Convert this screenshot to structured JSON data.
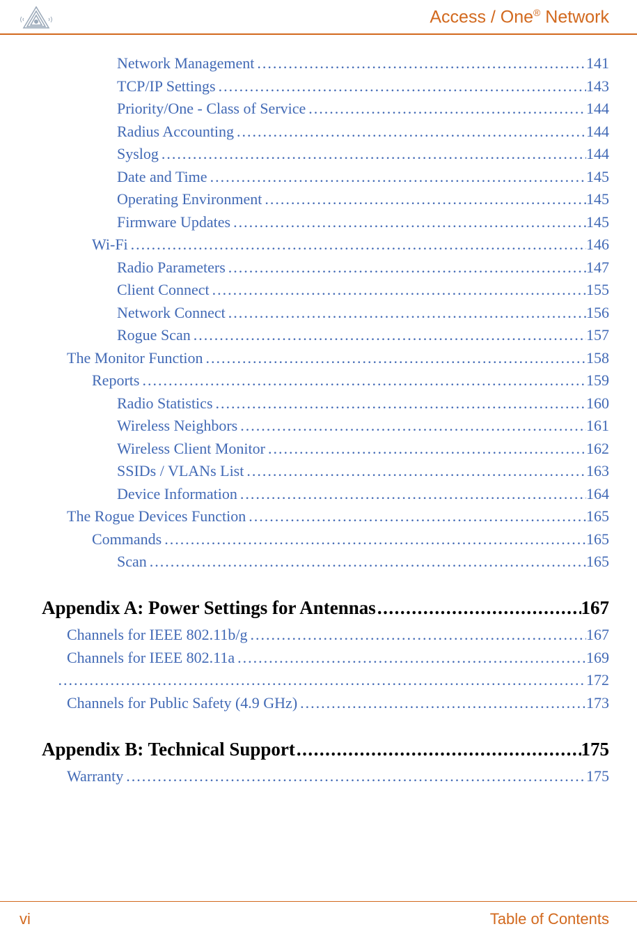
{
  "header": {
    "title_prefix": "Access / One",
    "title_reg": "®",
    "title_suffix": " Network"
  },
  "toc": {
    "entries": [
      {
        "indent": 3,
        "text": "Network Management ",
        "page": "141"
      },
      {
        "indent": 3,
        "text": "TCP/IP Settings ",
        "page": "143"
      },
      {
        "indent": 3,
        "text": "Priority/One - Class of Service ",
        "page": "144"
      },
      {
        "indent": 3,
        "text": "Radius Accounting ",
        "page": "144"
      },
      {
        "indent": 3,
        "text": "Syslog ",
        "page": "144"
      },
      {
        "indent": 3,
        "text": "Date and Time ",
        "page": "145"
      },
      {
        "indent": 3,
        "text": "Operating Environment ",
        "page": "145"
      },
      {
        "indent": 3,
        "text": "Firmware Updates ",
        "page": "145"
      },
      {
        "indent": 2,
        "text": "Wi-Fi ",
        "page": "146"
      },
      {
        "indent": 3,
        "text": "Radio Parameters ",
        "page": "147"
      },
      {
        "indent": 3,
        "text": "Client Connect ",
        "page": "155"
      },
      {
        "indent": 3,
        "text": "Network Connect ",
        "page": "156"
      },
      {
        "indent": 3,
        "text": "Rogue Scan ",
        "page": "157"
      },
      {
        "indent": 1,
        "text": "The Monitor Function ",
        "page": "158"
      },
      {
        "indent": 2,
        "text": "Reports ",
        "page": "159"
      },
      {
        "indent": 3,
        "text": "Radio Statistics ",
        "page": "160"
      },
      {
        "indent": 3,
        "text": "Wireless Neighbors ",
        "page": "161"
      },
      {
        "indent": 3,
        "text": "Wireless Client Monitor ",
        "page": "162"
      },
      {
        "indent": 3,
        "text": "SSIDs / VLANs List ",
        "page": "163"
      },
      {
        "indent": 3,
        "text": "Device Information ",
        "page": "164"
      },
      {
        "indent": 1,
        "text": "The Rogue Devices Function ",
        "page": "165"
      },
      {
        "indent": 2,
        "text": "Commands ",
        "page": "165"
      },
      {
        "indent": 3,
        "text": "Scan ",
        "page": "165"
      }
    ]
  },
  "appendixA": {
    "title": "Appendix A:  Power Settings for Antennas",
    "page": " 167",
    "entries": [
      {
        "indent": 1,
        "text": "Channels for IEEE 802.11b/g ",
        "page": "167"
      },
      {
        "indent": 1,
        "text": "Channels for IEEE 802.11a ",
        "page": "169"
      }
    ],
    "blank_page": "172",
    "after_blank": [
      {
        "indent": 1,
        "text": "Channels for Public Safety (4.9 GHz) ",
        "page": "173"
      }
    ]
  },
  "appendixB": {
    "title": "Appendix B:  Technical Support ",
    "page": "175",
    "entries": [
      {
        "indent": 1,
        "text": "Warranty ",
        "page": "175"
      }
    ]
  },
  "footer": {
    "left": "vi",
    "right": "Table of Contents"
  },
  "colors": {
    "link": "#4169b5",
    "accent": "#d2691e",
    "text": "#000000"
  }
}
